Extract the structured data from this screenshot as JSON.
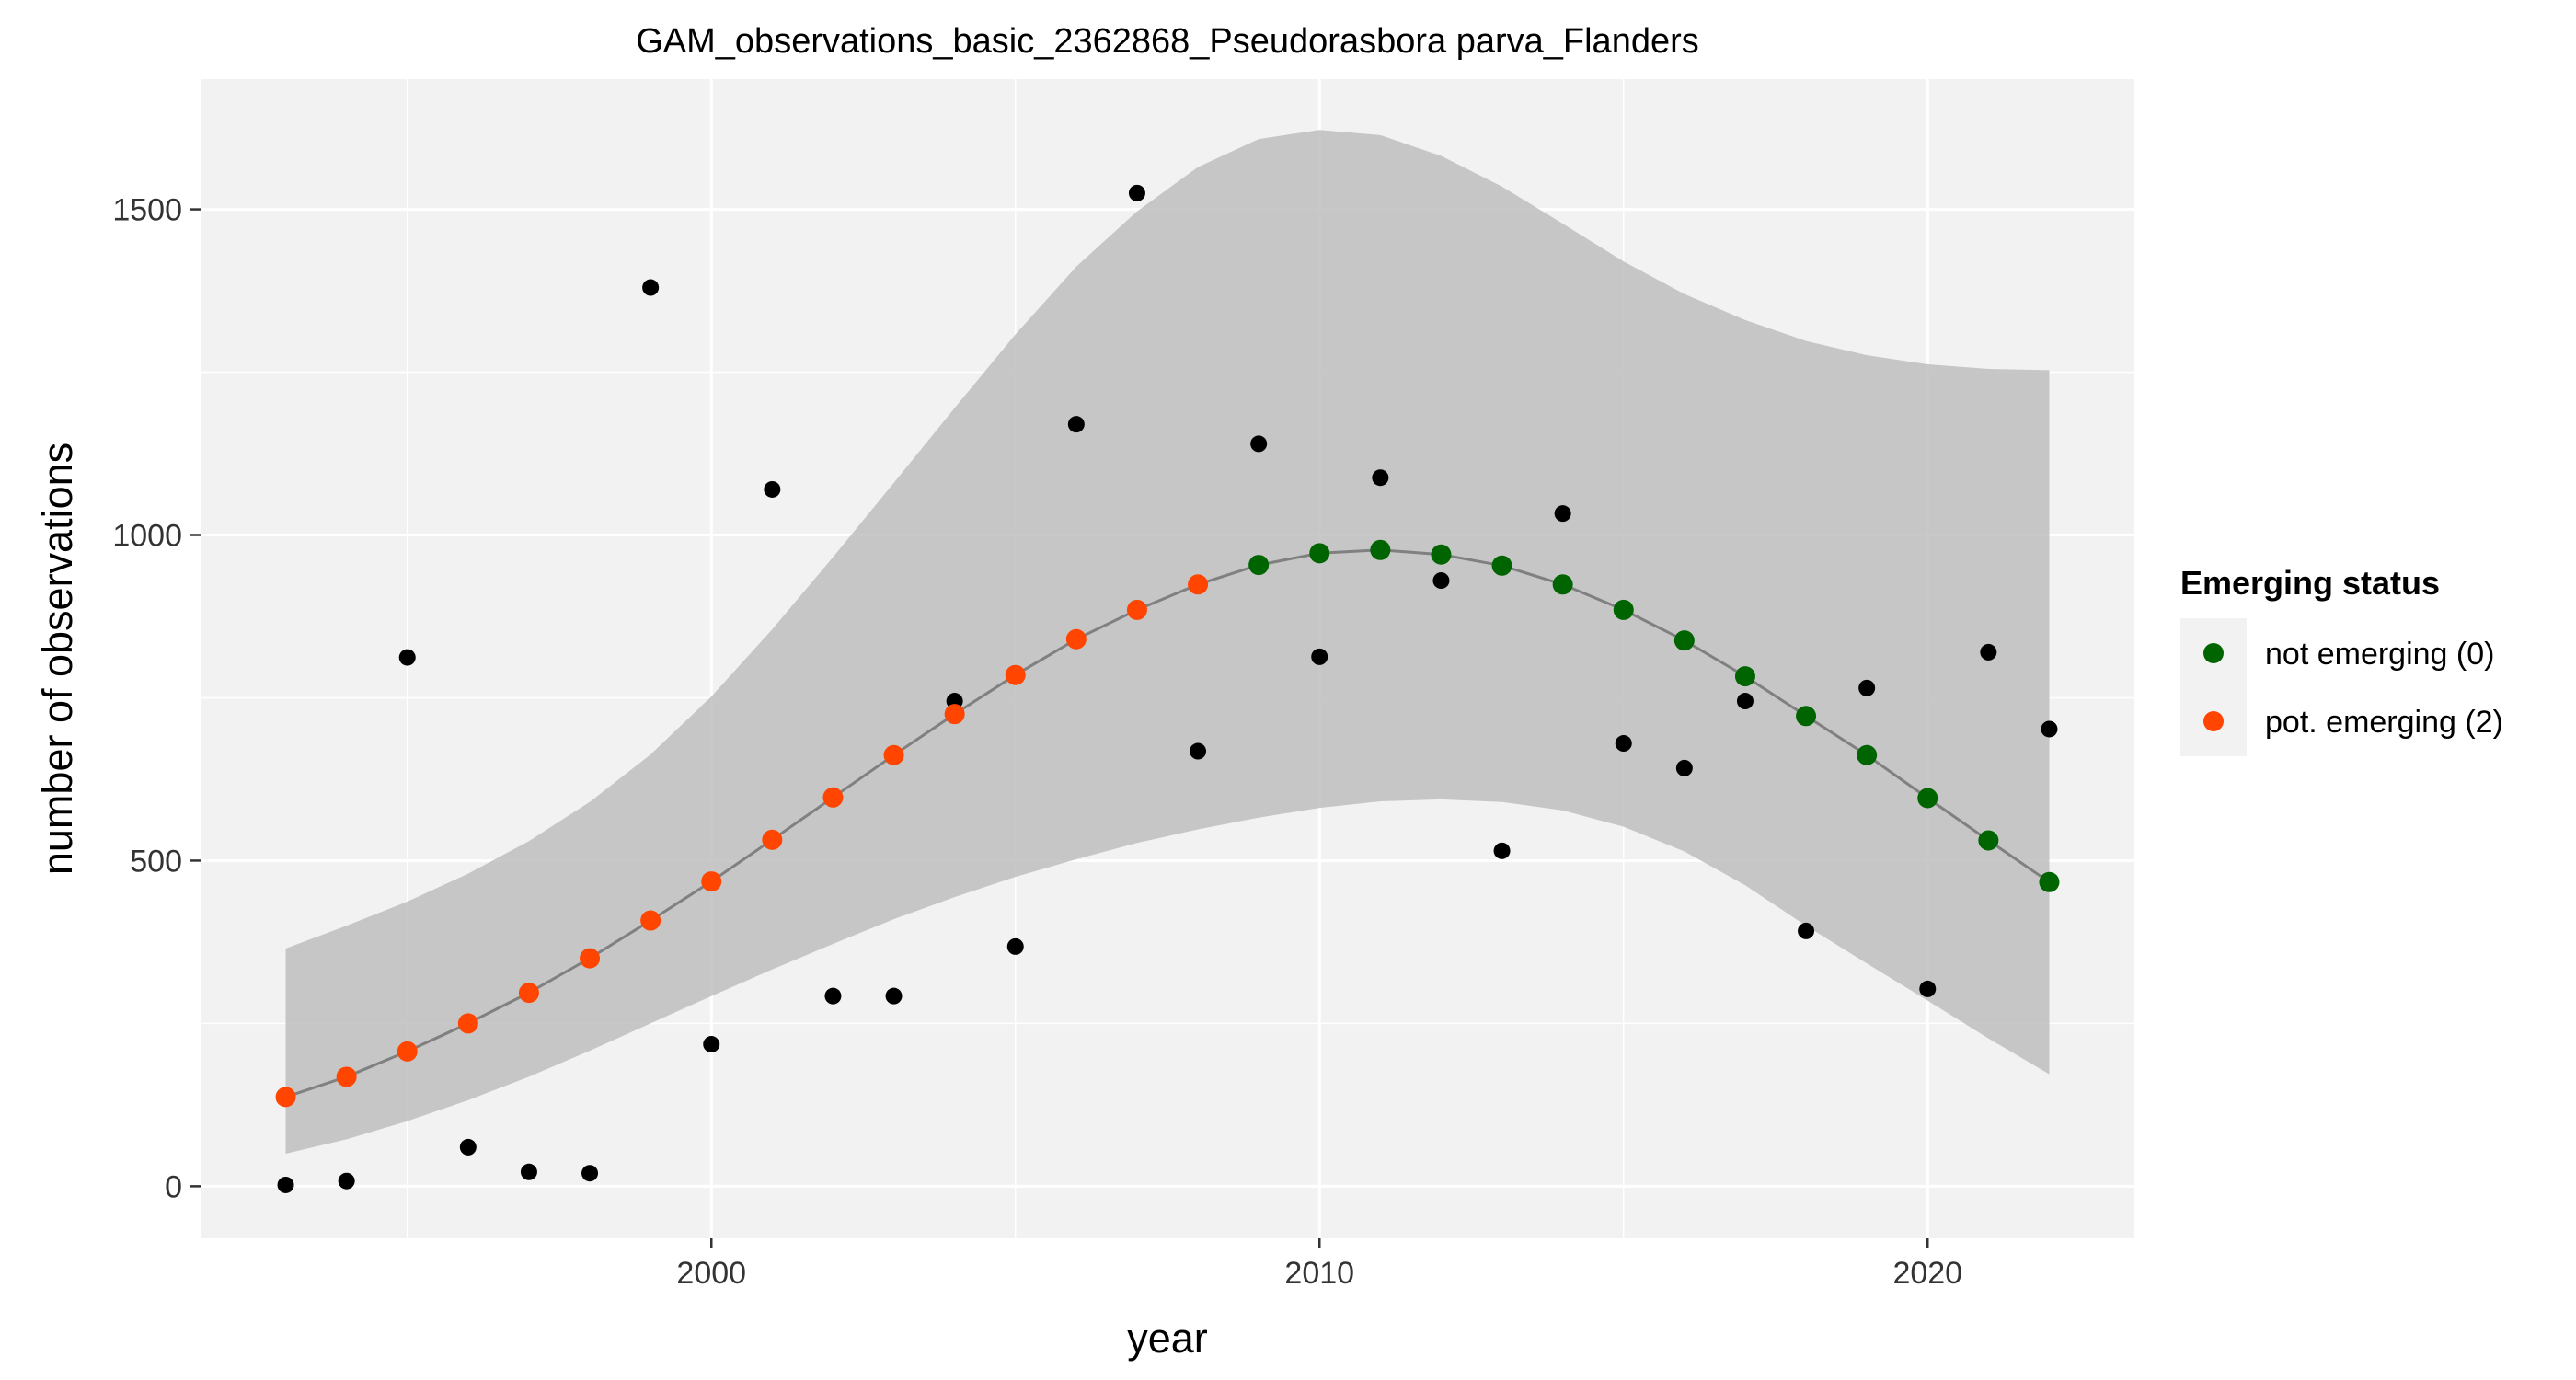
{
  "chart_data": {
    "type": "scatter",
    "title": "GAM_observations_basic_2362868_Pseudorasbora parva_Flanders",
    "xlabel": "year",
    "ylabel": "number of observations",
    "xlim": [
      1991.6,
      2023.4
    ],
    "ylim": [
      -80,
      1700
    ],
    "x_ticks": [
      2000,
      2010,
      2020
    ],
    "y_ticks": [
      0,
      500,
      1000,
      1500
    ],
    "grid": true,
    "legend": {
      "title": "Emerging status",
      "position": "right",
      "entries": [
        {
          "label": "not emerging (0)",
          "color": "#006400"
        },
        {
          "label": "pot. emerging (2)",
          "color": "#FF4500"
        }
      ]
    },
    "colors": {
      "panel_background": "#F2F2F2",
      "grid": "#FFFFFF",
      "ribbon": "#BEBEBE",
      "fit_line": "#808080",
      "observed": "#000000",
      "not_emerging": "#006400",
      "pot_emerging": "#FF4500"
    },
    "observed": {
      "x": [
        1993,
        1994,
        1995,
        1996,
        1997,
        1998,
        1999,
        2000,
        2001,
        2002,
        2003,
        2004,
        2005,
        2006,
        2007,
        2008,
        2009,
        2010,
        2011,
        2012,
        2013,
        2014,
        2015,
        2016,
        2017,
        2018,
        2019,
        2020,
        2021,
        2022
      ],
      "y": [
        2,
        8,
        812,
        60,
        22,
        20,
        1380,
        218,
        1070,
        292,
        292,
        745,
        368,
        1170,
        1525,
        668,
        1140,
        813,
        1088,
        930,
        515,
        1033,
        680,
        642,
        745,
        392,
        765,
        303,
        820,
        702
      ]
    },
    "fitted": {
      "x": [
        1993,
        1994,
        1995,
        1996,
        1997,
        1998,
        1999,
        2000,
        2001,
        2002,
        2003,
        2004,
        2005,
        2006,
        2007,
        2008,
        2009,
        2010,
        2011,
        2012,
        2013,
        2014,
        2015,
        2016,
        2017,
        2018,
        2019,
        2020,
        2021,
        2022
      ],
      "y": [
        137,
        168,
        207,
        250,
        297,
        350,
        408,
        468,
        532,
        597,
        662,
        725,
        785,
        840,
        885,
        924,
        954,
        972,
        977,
        970,
        953,
        924,
        885,
        838,
        783,
        722,
        662,
        596,
        531,
        467
      ],
      "lower": [
        50,
        72,
        100,
        132,
        168,
        208,
        250,
        292,
        333,
        372,
        410,
        444,
        475,
        502,
        527,
        548,
        566,
        581,
        591,
        594,
        590,
        577,
        552,
        514,
        462,
        400,
        342,
        285,
        227,
        172
      ],
      "upper": [
        365,
        400,
        437,
        480,
        530,
        590,
        663,
        752,
        855,
        966,
        1080,
        1195,
        1308,
        1412,
        1497,
        1565,
        1608,
        1622,
        1614,
        1582,
        1535,
        1478,
        1420,
        1370,
        1330,
        1298,
        1276,
        1262,
        1255,
        1253
      ],
      "emerging_status": [
        2,
        2,
        2,
        2,
        2,
        2,
        2,
        2,
        2,
        2,
        2,
        2,
        2,
        2,
        2,
        2,
        0,
        0,
        0,
        0,
        0,
        0,
        0,
        0,
        0,
        0,
        0,
        0,
        0,
        0
      ]
    }
  }
}
